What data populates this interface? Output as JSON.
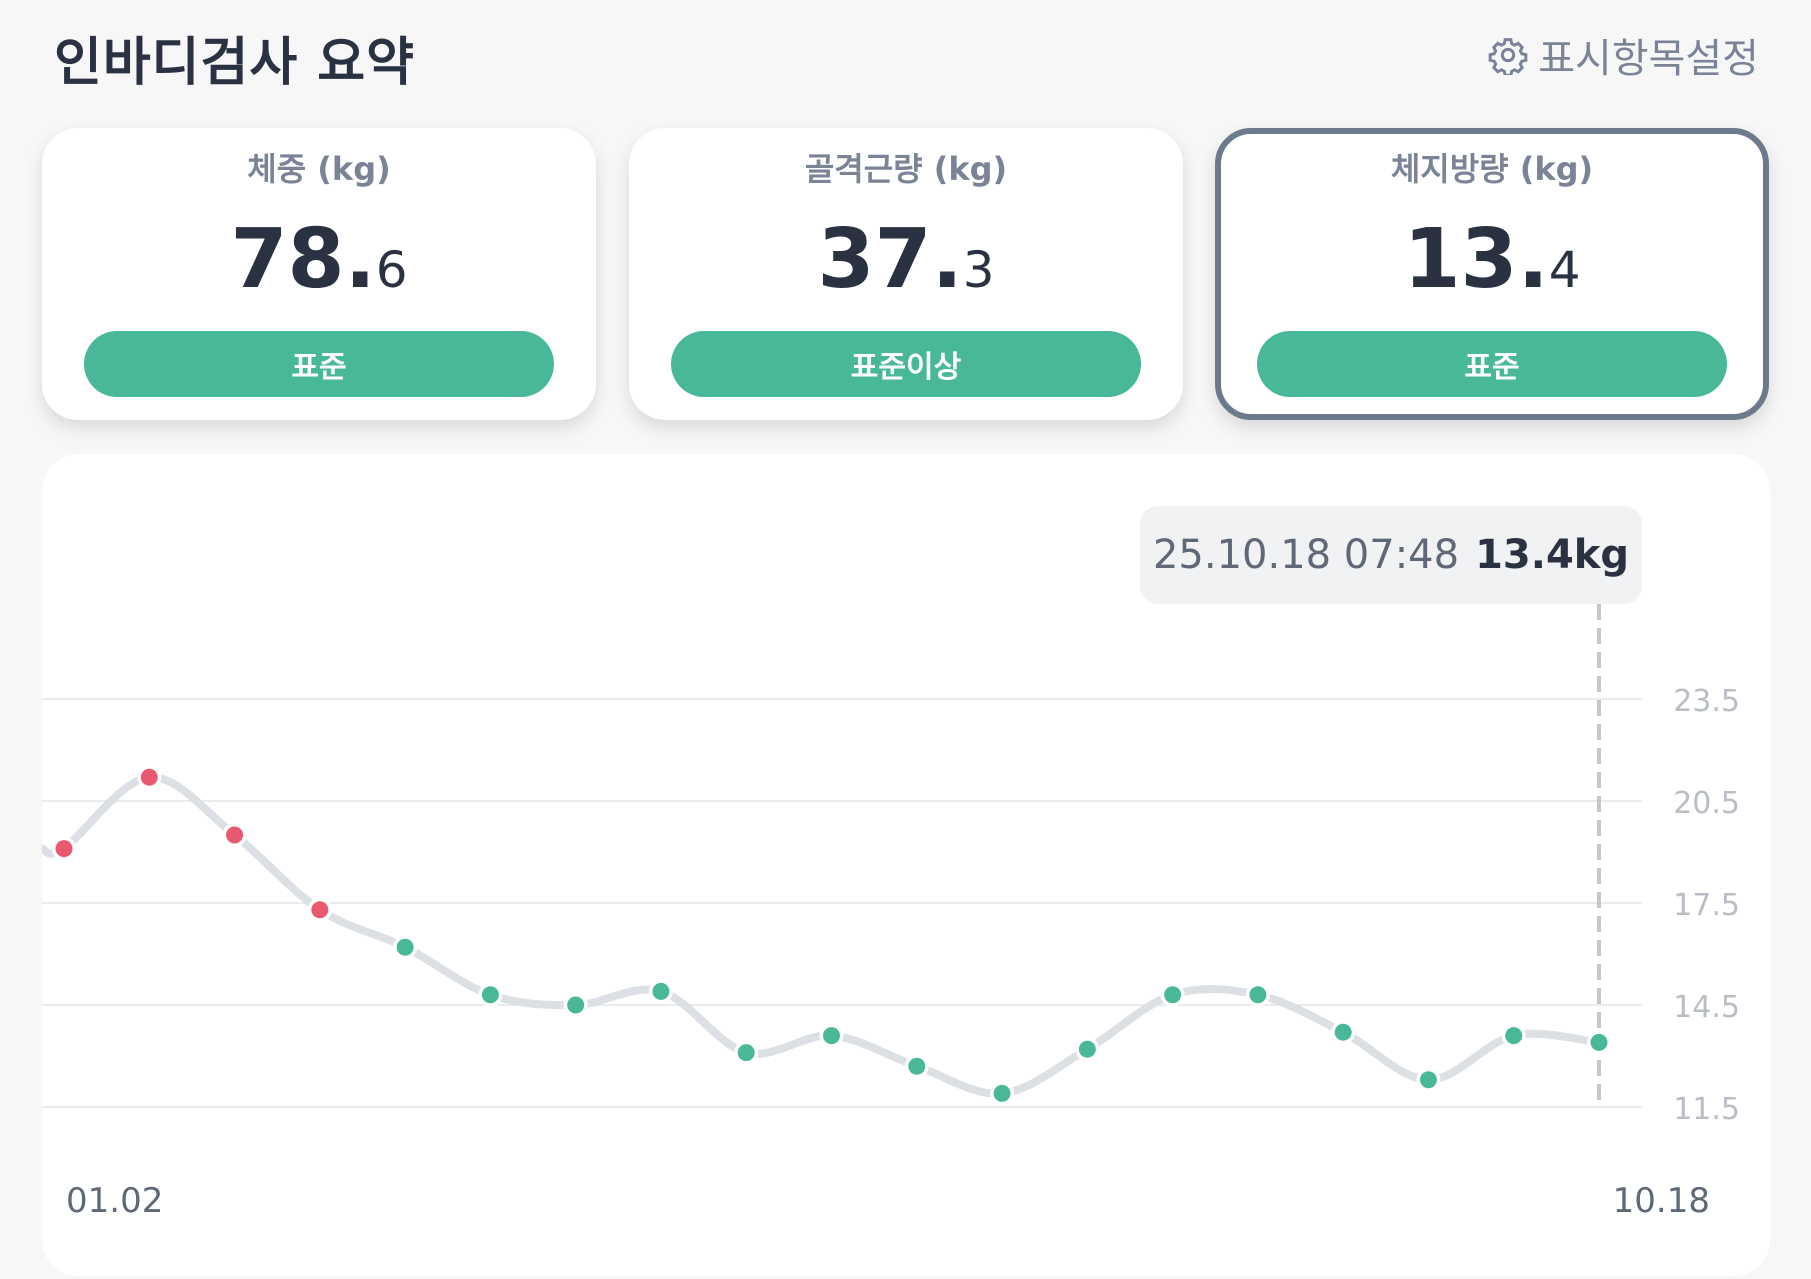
{
  "header": {
    "title": "인바디검사 요약",
    "settings_label": "표시항목설정",
    "settings_icon": "gear-icon"
  },
  "cards": [
    {
      "label": "체중 (kg)",
      "value_int": "78",
      "value_dec": "6",
      "badge": "표준",
      "selected": false
    },
    {
      "label": "골격근량 (kg)",
      "value_int": "37",
      "value_dec": "3",
      "badge": "표준이상",
      "selected": false
    },
    {
      "label": "체지방량 (kg)",
      "value_int": "13",
      "value_dec": "4",
      "badge": "표준",
      "selected": true
    }
  ],
  "colors": {
    "badge": "#48b898",
    "point_normal": "#48b898",
    "point_high": "#e8596f",
    "line": "#dcdfe4",
    "grid": "#e9ebee"
  },
  "tooltip": {
    "date": "25.10.18 07:48",
    "value": "13.4kg"
  },
  "chart_data": {
    "type": "line",
    "y_ticks": [
      23.5,
      20.5,
      17.5,
      14.5,
      11.5
    ],
    "ylim": [
      11.5,
      23.5
    ],
    "x_start_label": "01.02",
    "x_end_label": "10.18",
    "values": [
      19.1,
      21.2,
      19.5,
      17.3,
      16.2,
      14.8,
      14.5,
      14.9,
      13.1,
      13.6,
      12.7,
      11.9,
      13.2,
      14.8,
      14.8,
      13.7,
      12.3,
      13.6,
      13.4
    ],
    "high_flags": [
      true,
      true,
      true,
      true,
      false,
      false,
      false,
      false,
      false,
      false,
      false,
      false,
      false,
      false,
      false,
      false,
      false,
      false,
      false
    ],
    "selected_index": 18
  }
}
